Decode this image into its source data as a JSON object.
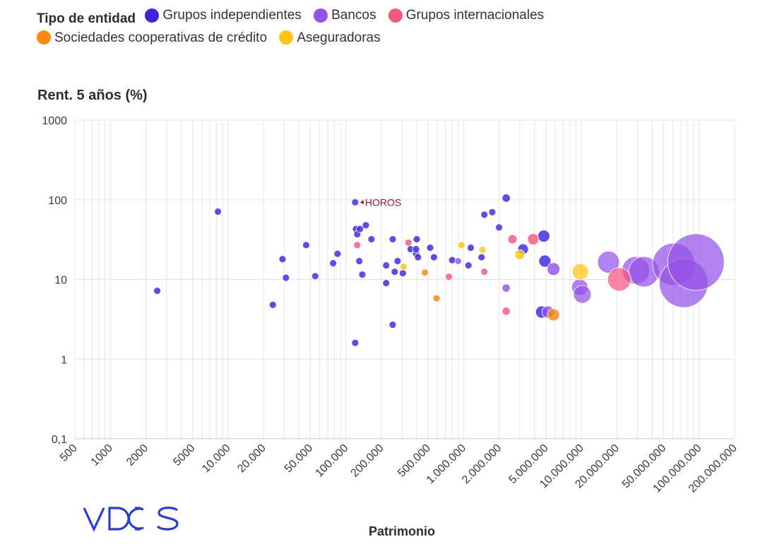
{
  "chart_data": {
    "type": "scatter",
    "legend": {
      "title": "Tipo de entidad",
      "position": "top-left",
      "entries": [
        {
          "name": "Grupos independientes",
          "color": "#3b26e0"
        },
        {
          "name": "Bancos",
          "color": "#9452e8"
        },
        {
          "name": "Grupos internacionales",
          "color": "#f5577e"
        },
        {
          "name": "Sociedades cooperativas de crédito",
          "color": "#f98911"
        },
        {
          "name": "Aseguradoras",
          "color": "#ffc512"
        }
      ]
    },
    "ylabel": "Rent. 5 años (%)",
    "xlabel": "Patrimonio",
    "x_scale": "log",
    "y_scale": "log",
    "xlim": [
      500,
      200000000
    ],
    "ylim": [
      0.1,
      1000
    ],
    "grid": true,
    "x_tick_labels": [
      "500",
      "1000",
      "2000",
      "5000",
      "10.000",
      "20.000",
      "50.000",
      "100.000",
      "200.000",
      "500.000",
      "1.000.000",
      "2.000.000",
      "5.000.000",
      "10.000.000",
      "20.000.000",
      "50.000.000",
      "100.000.000",
      "200.000.000"
    ],
    "y_tick_labels": [
      "0,1",
      "1",
      "10",
      "100",
      "1000"
    ],
    "annotation": {
      "text": "HOROS",
      "x": 120000,
      "y": 93,
      "color": "#8b1a2b"
    },
    "series": [
      {
        "name": "Grupos independientes",
        "color": "#3b26e0",
        "points": [
          {
            "x": 2500,
            "y": 7.2,
            "s": 1
          },
          {
            "x": 8200,
            "y": 71,
            "s": 1
          },
          {
            "x": 24000,
            "y": 4.8,
            "s": 1
          },
          {
            "x": 29000,
            "y": 18,
            "s": 1
          },
          {
            "x": 31000,
            "y": 10.5,
            "s": 1
          },
          {
            "x": 46000,
            "y": 27,
            "s": 1
          },
          {
            "x": 55000,
            "y": 11,
            "s": 1
          },
          {
            "x": 78000,
            "y": 16,
            "s": 1
          },
          {
            "x": 85000,
            "y": 21,
            "s": 1
          },
          {
            "x": 120000,
            "y": 93,
            "s": 1
          },
          {
            "x": 122000,
            "y": 43,
            "s": 1
          },
          {
            "x": 125000,
            "y": 37,
            "s": 1
          },
          {
            "x": 130000,
            "y": 17,
            "s": 1
          },
          {
            "x": 138000,
            "y": 11.5,
            "s": 1
          },
          {
            "x": 148000,
            "y": 48,
            "s": 1
          },
          {
            "x": 165000,
            "y": 32,
            "s": 1
          },
          {
            "x": 120000,
            "y": 1.6,
            "s": 1
          },
          {
            "x": 132000,
            "y": 43,
            "s": 1
          },
          {
            "x": 220000,
            "y": 15,
            "s": 1
          },
          {
            "x": 220000,
            "y": 9,
            "s": 1
          },
          {
            "x": 250000,
            "y": 32,
            "s": 1
          },
          {
            "x": 260000,
            "y": 12.5,
            "s": 1
          },
          {
            "x": 275000,
            "y": 17,
            "s": 1
          },
          {
            "x": 305000,
            "y": 12,
            "s": 1
          },
          {
            "x": 250000,
            "y": 2.7,
            "s": 1
          },
          {
            "x": 355000,
            "y": 24,
            "s": 1
          },
          {
            "x": 400000,
            "y": 32,
            "s": 1
          },
          {
            "x": 395000,
            "y": 21,
            "s": 1
          },
          {
            "x": 410000,
            "y": 19,
            "s": 1
          },
          {
            "x": 395000,
            "y": 24,
            "s": 1
          },
          {
            "x": 520000,
            "y": 25,
            "s": 1
          },
          {
            "x": 560000,
            "y": 19,
            "s": 1
          },
          {
            "x": 800000,
            "y": 17.5,
            "s": 1
          },
          {
            "x": 1150000,
            "y": 25,
            "s": 1
          },
          {
            "x": 1100000,
            "y": 15,
            "s": 1
          },
          {
            "x": 1420000,
            "y": 19,
            "s": 1
          },
          {
            "x": 1500000,
            "y": 65,
            "s": 1
          },
          {
            "x": 1750000,
            "y": 70,
            "s": 1
          },
          {
            "x": 2000000,
            "y": 45,
            "s": 1
          },
          {
            "x": 2300000,
            "y": 105,
            "s": 1.15
          },
          {
            "x": 3200000,
            "y": 24,
            "s": 1.5
          },
          {
            "x": 4800000,
            "y": 35,
            "s": 1.7
          },
          {
            "x": 4900000,
            "y": 17,
            "s": 1.7
          },
          {
            "x": 4600000,
            "y": 3.9,
            "s": 1.7
          }
        ]
      },
      {
        "name": "Bancos",
        "color": "#9452e8",
        "points": [
          {
            "x": 900000,
            "y": 17,
            "s": 0.95
          },
          {
            "x": 2300000,
            "y": 7.8,
            "s": 1.15
          },
          {
            "x": 5800000,
            "y": 13.5,
            "s": 1.8
          },
          {
            "x": 5200000,
            "y": 3.9,
            "s": 1.7
          },
          {
            "x": 9700000,
            "y": 8,
            "s": 2.3
          },
          {
            "x": 10200000,
            "y": 6.5,
            "s": 2.5
          },
          {
            "x": 17000000,
            "y": 16.5,
            "s": 3.1
          },
          {
            "x": 29000000,
            "y": 13,
            "s": 3.9
          },
          {
            "x": 34000000,
            "y": 12.5,
            "s": 4.3
          },
          {
            "x": 61000000,
            "y": 15.5,
            "s": 6.0
          },
          {
            "x": 74000000,
            "y": 9,
            "s": 6.9
          },
          {
            "x": 94000000,
            "y": 16.5,
            "s": 8.0
          }
        ]
      },
      {
        "name": "Grupos internacionales",
        "color": "#f5577e",
        "points": [
          {
            "x": 125000,
            "y": 27,
            "s": 1
          },
          {
            "x": 340000,
            "y": 29,
            "s": 1
          },
          {
            "x": 750000,
            "y": 10.8,
            "s": 1
          },
          {
            "x": 1500000,
            "y": 12.5,
            "s": 1
          },
          {
            "x": 2300000,
            "y": 4,
            "s": 1.15
          },
          {
            "x": 2600000,
            "y": 32,
            "s": 1.3
          },
          {
            "x": 3900000,
            "y": 32,
            "s": 1.6
          },
          {
            "x": 21000000,
            "y": 10,
            "s": 3.3
          }
        ]
      },
      {
        "name": "Sociedades cooperativas de crédito",
        "color": "#f98911",
        "points": [
          {
            "x": 470000,
            "y": 12.2,
            "s": 1
          },
          {
            "x": 590000,
            "y": 5.8,
            "s": 1
          },
          {
            "x": 5800000,
            "y": 3.6,
            "s": 1.7
          }
        ]
      },
      {
        "name": "Aseguradoras",
        "color": "#ffc512",
        "points": [
          {
            "x": 310000,
            "y": 14.5,
            "s": 1
          },
          {
            "x": 960000,
            "y": 27,
            "s": 1
          },
          {
            "x": 1450000,
            "y": 23.5,
            "s": 1
          },
          {
            "x": 3000000,
            "y": 20.5,
            "s": 1.4
          },
          {
            "x": 9800000,
            "y": 12.5,
            "s": 2.3
          }
        ]
      }
    ]
  },
  "branding": {
    "logo_text": "VDOS"
  }
}
